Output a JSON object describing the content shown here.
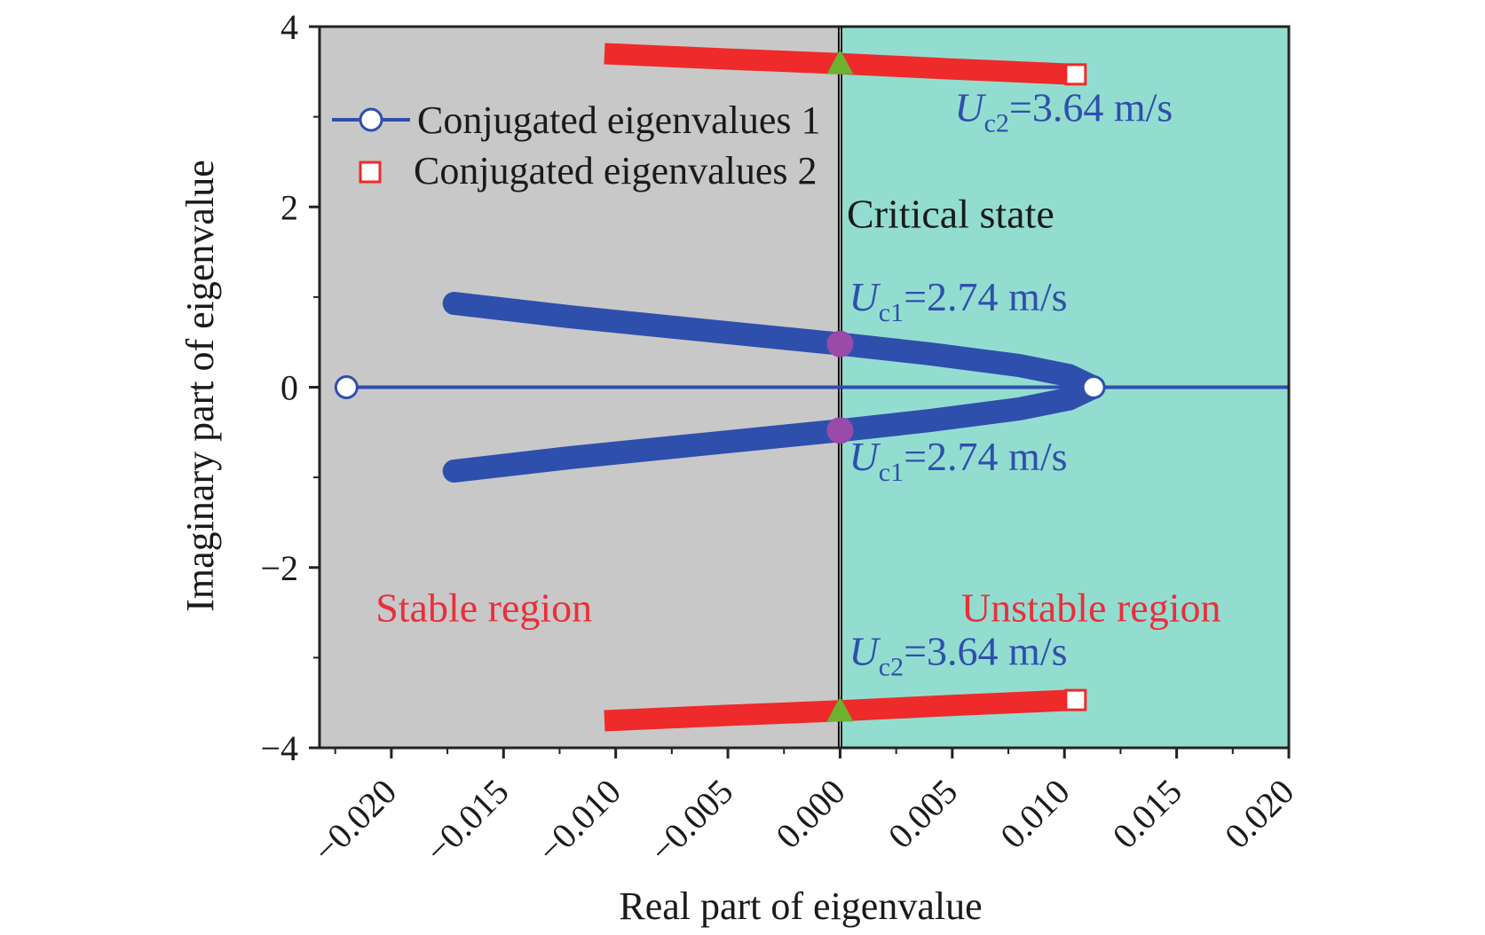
{
  "chart_data": {
    "type": "scatter",
    "xlabel": "Real part of eigenvalue",
    "ylabel": "Imaginary part of eigenvalue",
    "xlim": [
      -0.0232,
      0.02
    ],
    "ylim": [
      -4,
      4
    ],
    "x_ticks": [
      -0.02,
      -0.015,
      -0.01,
      -0.005,
      0.0,
      0.005,
      0.01,
      0.015,
      0.02
    ],
    "x_tick_labels": [
      "−0.020",
      "−0.015",
      "−0.010",
      "−0.005",
      "0.000",
      "0.005",
      "0.010",
      "0.015",
      "0.020"
    ],
    "y_ticks": [
      -4,
      -2,
      0,
      2,
      4
    ],
    "y_tick_labels": [
      "−4",
      "−2",
      "0",
      "2",
      "4"
    ],
    "regions": [
      {
        "name": "Stable region",
        "x_range": [
          -0.0232,
          0.0
        ],
        "color": "#c8c8c8"
      },
      {
        "name": "Unstable region",
        "x_range": [
          0.0,
          0.02
        ],
        "color": "#93ddd0"
      }
    ],
    "critical_line": {
      "x": 0.0,
      "label": "Critical state"
    },
    "series": [
      {
        "name": "Conjugated eigenvalues 1",
        "color": "#2f4fad",
        "marker": "circle",
        "branches": [
          {
            "points": [
              [
                -0.0172,
                0.93
              ],
              [
                -0.012,
                0.78
              ],
              [
                -0.006,
                0.63
              ],
              [
                0.0,
                0.48
              ],
              [
                0.004,
                0.37
              ],
              [
                0.008,
                0.24
              ],
              [
                0.0102,
                0.13
              ],
              [
                0.0113,
                0.0
              ]
            ]
          },
          {
            "points": [
              [
                -0.0172,
                -0.93
              ],
              [
                -0.012,
                -0.78
              ],
              [
                -0.006,
                -0.63
              ],
              [
                0.0,
                -0.48
              ],
              [
                0.004,
                -0.37
              ],
              [
                0.008,
                -0.24
              ],
              [
                0.0102,
                -0.13
              ],
              [
                0.0113,
                0.0
              ]
            ]
          },
          {
            "points": [
              [
                -0.022,
                0.0
              ],
              [
                0.02,
                0.0
              ]
            ]
          }
        ],
        "endpoint_markers": [
          [
            -0.022,
            0.0
          ],
          [
            0.0113,
            0.0
          ]
        ]
      },
      {
        "name": "Conjugated eigenvalues 2",
        "color": "#ee2a2a",
        "marker": "square",
        "branches": [
          {
            "points": [
              [
                -0.0105,
                3.7
              ],
              [
                -0.005,
                3.64
              ],
              [
                0.0,
                3.59
              ],
              [
                0.005,
                3.53
              ],
              [
                0.0105,
                3.47
              ]
            ]
          },
          {
            "points": [
              [
                -0.0105,
                -3.7
              ],
              [
                -0.005,
                -3.64
              ],
              [
                0.0,
                -3.59
              ],
              [
                0.005,
                -3.53
              ],
              [
                0.0105,
                -3.47
              ]
            ]
          }
        ],
        "endpoint_markers": [
          [
            0.0105,
            3.47
          ],
          [
            0.0105,
            -3.47
          ]
        ]
      }
    ],
    "critical_points": [
      {
        "x": 0.0,
        "y": 3.59,
        "marker": "triangle",
        "color": "#6cb22f"
      },
      {
        "x": 0.0,
        "y": -3.59,
        "marker": "triangle",
        "color": "#6cb22f"
      },
      {
        "x": 0.0,
        "y": 0.48,
        "marker": "circle",
        "color": "#9a4aa8"
      },
      {
        "x": 0.0,
        "y": -0.48,
        "marker": "circle",
        "color": "#9a4aa8"
      }
    ],
    "annotations": [
      {
        "id": "uc2-top",
        "symbol": "U",
        "subscript": "c2",
        "text": "=3.64 m/s",
        "x": 0.0051,
        "y": 2.95,
        "color": "#2f4fad"
      },
      {
        "id": "uc1-top",
        "symbol": "U",
        "subscript": "c1",
        "text": "=2.74 m/s",
        "x": 0.0004,
        "y": 0.85,
        "color": "#2f4fad"
      },
      {
        "id": "uc1-bottom",
        "symbol": "U",
        "subscript": "c1",
        "text": "=2.74 m/s",
        "x": 0.0004,
        "y": -0.92,
        "color": "#2f4fad"
      },
      {
        "id": "uc2-bottom",
        "symbol": "U",
        "subscript": "c2",
        "text": "=3.64 m/s",
        "x": 0.0004,
        "y": -3.08,
        "color": "#2f4fad"
      },
      {
        "id": "critical-state",
        "text": "Critical state",
        "x": 0.0003,
        "y": 1.77,
        "color": "#1a1a1a"
      },
      {
        "id": "stable-region",
        "text": "Stable region",
        "x": -0.0207,
        "y": -2.6,
        "color": "#e8303a"
      },
      {
        "id": "unstable-region",
        "text": "Unstable region",
        "x": 0.0054,
        "y": -2.6,
        "color": "#e8303a"
      }
    ]
  }
}
